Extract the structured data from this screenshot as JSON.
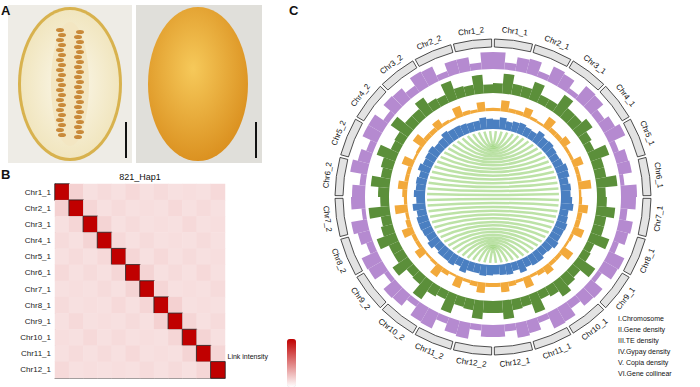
{
  "panel_labels": [
    "A",
    "B",
    "C"
  ],
  "chart_data": [
    {
      "type": "heatmap",
      "title": "821_Hap1",
      "y_categories": [
        "Chr1_1",
        "Chr2_1",
        "Chr3_1",
        "Chr4_1",
        "Chr5_1",
        "Chr6_1",
        "Chr7_1",
        "Chr8_1",
        "Chr9_1",
        "Chr10_1",
        "Chr11_1",
        "Chr12_1"
      ],
      "cells": [
        [
          1,
          0.18,
          0.12,
          0.14,
          0.12,
          0.15,
          0.12,
          0.14,
          0.12,
          0.13,
          0.12,
          0.15
        ],
        [
          0.18,
          1,
          0.16,
          0.12,
          0.14,
          0.12,
          0.13,
          0.12,
          0.15,
          0.12,
          0.14,
          0.12
        ],
        [
          0.12,
          0.16,
          1,
          0.17,
          0.12,
          0.14,
          0.12,
          0.13,
          0.12,
          0.15,
          0.12,
          0.13
        ],
        [
          0.14,
          0.12,
          0.17,
          1,
          0.15,
          0.12,
          0.14,
          0.12,
          0.13,
          0.12,
          0.14,
          0.12
        ],
        [
          0.12,
          0.14,
          0.12,
          0.15,
          1,
          0.16,
          0.12,
          0.15,
          0.12,
          0.14,
          0.12,
          0.13
        ],
        [
          0.15,
          0.12,
          0.14,
          0.12,
          0.16,
          1,
          0.17,
          0.12,
          0.14,
          0.12,
          0.15,
          0.12
        ],
        [
          0.12,
          0.13,
          0.12,
          0.14,
          0.12,
          0.17,
          1,
          0.16,
          0.12,
          0.13,
          0.12,
          0.14
        ],
        [
          0.14,
          0.12,
          0.13,
          0.12,
          0.15,
          0.12,
          0.16,
          1,
          0.18,
          0.12,
          0.13,
          0.12
        ],
        [
          0.12,
          0.15,
          0.12,
          0.13,
          0.12,
          0.14,
          0.12,
          0.18,
          1,
          0.16,
          0.12,
          0.14
        ],
        [
          0.13,
          0.12,
          0.15,
          0.12,
          0.14,
          0.12,
          0.13,
          0.12,
          0.16,
          1,
          0.17,
          0.12
        ],
        [
          0.12,
          0.14,
          0.12,
          0.14,
          0.12,
          0.15,
          0.12,
          0.13,
          0.12,
          0.17,
          1,
          0.16
        ],
        [
          0.15,
          0.12,
          0.13,
          0.12,
          0.13,
          0.12,
          0.14,
          0.12,
          0.14,
          0.12,
          0.16,
          1
        ]
      ],
      "colorbar_label": "Link intensity",
      "colorbar_range": [
        0,
        1
      ],
      "color": "#c00000",
      "tick_labels": "y"
    },
    {
      "type": "circos",
      "chromosomes": [
        "Chr1_1",
        "Chr2_1",
        "Chr3_1",
        "Chr4_1",
        "Chr5_1",
        "Chr6_1",
        "Chr7_1",
        "Chr8_1",
        "Chr9_1",
        "Chr10_1",
        "Chr11_1",
        "Chr12_1",
        "Chr12_2",
        "Chr11_2",
        "Chr10_2",
        "Chr9_2",
        "Chr8_2",
        "Chr7_2",
        "Chr6_2",
        "Chr5_2",
        "Chr4_2",
        "Chr3_2",
        "Chr2_2",
        "Chr1_2"
      ],
      "ring_label": "I.Chromosome",
      "ylim": [
        0,
        1
      ],
      "tick_labels": false,
      "series": [
        {
          "name": "II.Gene density",
          "color": "#b58ad0",
          "values": [
            0.85,
            0.35,
            0.7,
            0.75,
            0.3,
            0.8,
            0.7,
            0.25,
            0.85,
            0.8,
            0.4,
            0.65,
            0.9,
            0.3,
            0.6,
            0.65,
            0.2,
            0.8,
            0.75,
            0.35,
            0.7,
            0.6,
            0.3,
            0.85,
            0.8,
            0.25,
            0.75,
            0.7,
            0.4,
            0.8,
            0.85,
            0.3,
            0.65,
            0.75,
            0.35,
            0.6,
            0.6,
            0.3,
            0.8,
            0.7,
            0.35,
            0.85,
            0.8,
            0.3,
            0.7,
            0.75,
            0.25,
            0.8,
            0.85,
            0.35,
            0.6,
            0.8,
            0.2,
            0.7,
            0.65,
            0.3,
            0.85,
            0.6,
            0.35,
            0.8,
            0.8,
            0.3,
            0.75,
            0.7,
            0.4,
            0.85,
            0.8,
            0.3,
            0.7,
            0.7,
            0.35,
            0.85
          ]
        },
        {
          "name": "III.TE density",
          "color": "#5b8f3a",
          "values": [
            0.45,
            0.9,
            0.5,
            0.5,
            0.85,
            0.4,
            0.4,
            0.95,
            0.55,
            0.55,
            0.8,
            0.45,
            0.35,
            0.9,
            0.5,
            0.5,
            0.95,
            0.4,
            0.45,
            0.85,
            0.5,
            0.5,
            0.9,
            0.35,
            0.4,
            0.95,
            0.45,
            0.55,
            0.8,
            0.5,
            0.4,
            0.9,
            0.45,
            0.5,
            0.85,
            0.55,
            0.55,
            0.85,
            0.5,
            0.45,
            0.9,
            0.4,
            0.5,
            0.95,
            0.45,
            0.4,
            0.85,
            0.5,
            0.5,
            0.9,
            0.55,
            0.45,
            0.95,
            0.4,
            0.5,
            0.85,
            0.45,
            0.55,
            0.9,
            0.4,
            0.45,
            0.95,
            0.5,
            0.5,
            0.8,
            0.45,
            0.4,
            0.9,
            0.5,
            0.45,
            0.85,
            0.4
          ]
        },
        {
          "name": "IV.Gypay density",
          "color": "#f2a93b",
          "values": [
            0.2,
            0.7,
            0.25,
            0.25,
            0.6,
            0.2,
            0.15,
            0.75,
            0.3,
            0.3,
            0.55,
            0.2,
            0.2,
            0.65,
            0.25,
            0.25,
            0.8,
            0.15,
            0.2,
            0.6,
            0.3,
            0.3,
            0.7,
            0.2,
            0.15,
            0.75,
            0.25,
            0.25,
            0.55,
            0.3,
            0.2,
            0.7,
            0.2,
            0.3,
            0.6,
            0.25,
            0.25,
            0.65,
            0.3,
            0.2,
            0.7,
            0.15,
            0.3,
            0.75,
            0.2,
            0.15,
            0.6,
            0.25,
            0.25,
            0.7,
            0.3,
            0.2,
            0.8,
            0.2,
            0.3,
            0.6,
            0.25,
            0.25,
            0.7,
            0.15,
            0.2,
            0.75,
            0.3,
            0.3,
            0.55,
            0.2,
            0.15,
            0.7,
            0.25,
            0.2,
            0.6,
            0.2
          ]
        },
        {
          "name": "V. Copia density",
          "color": "#4a7fc1",
          "values": [
            0.6,
            0.75,
            0.55,
            0.65,
            0.7,
            0.6,
            0.55,
            0.8,
            0.65,
            0.7,
            0.6,
            0.55,
            0.6,
            0.75,
            0.7,
            0.55,
            0.65,
            0.6,
            0.7,
            0.8,
            0.55,
            0.6,
            0.7,
            0.65,
            0.65,
            0.75,
            0.6,
            0.55,
            0.7,
            0.7,
            0.6,
            0.8,
            0.55,
            0.7,
            0.65,
            0.6,
            0.65,
            0.7,
            0.6,
            0.6,
            0.8,
            0.55,
            0.7,
            0.65,
            0.65,
            0.55,
            0.75,
            0.6,
            0.65,
            0.7,
            0.7,
            0.6,
            0.8,
            0.55,
            0.7,
            0.6,
            0.65,
            0.55,
            0.75,
            0.6,
            0.65,
            0.7,
            0.55,
            0.6,
            0.8,
            0.7,
            0.7,
            0.65,
            0.6,
            0.6,
            0.75,
            0.65
          ]
        }
      ],
      "links": {
        "name": "VI.Gene collinear",
        "color": "#8fcf6a",
        "pairs": [
          [
            0,
            71
          ],
          [
            1,
            70
          ],
          [
            2,
            69
          ],
          [
            3,
            68
          ],
          [
            4,
            67
          ],
          [
            5,
            66
          ],
          [
            6,
            65
          ],
          [
            7,
            64
          ],
          [
            8,
            63
          ],
          [
            9,
            62
          ],
          [
            10,
            61
          ],
          [
            11,
            60
          ],
          [
            12,
            59
          ],
          [
            13,
            58
          ],
          [
            14,
            57
          ],
          [
            15,
            56
          ],
          [
            16,
            55
          ],
          [
            17,
            54
          ],
          [
            18,
            53
          ],
          [
            19,
            52
          ],
          [
            20,
            51
          ],
          [
            21,
            50
          ],
          [
            22,
            49
          ],
          [
            23,
            48
          ],
          [
            24,
            47
          ],
          [
            25,
            46
          ],
          [
            26,
            45
          ],
          [
            27,
            44
          ],
          [
            28,
            43
          ],
          [
            29,
            42
          ],
          [
            30,
            41
          ],
          [
            31,
            40
          ],
          [
            32,
            39
          ],
          [
            33,
            38
          ],
          [
            34,
            37
          ],
          [
            35,
            36
          ]
        ]
      }
    }
  ]
}
